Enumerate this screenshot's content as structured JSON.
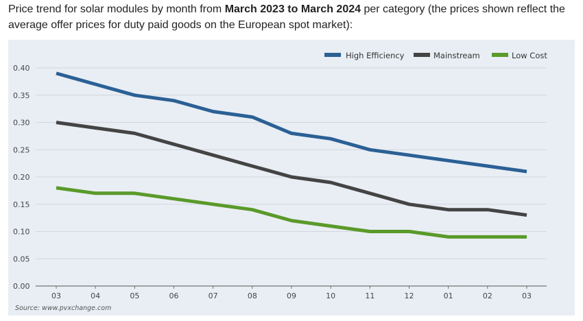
{
  "intro": {
    "part1": "Price trend for solar modules by month from ",
    "bold": "March 2023 to March 2024",
    "part2": " per category (the prices shown reflect the average offer prices for duty paid goods on the European spot market):"
  },
  "source": "Source: www.pvxchange.com",
  "colors": {
    "high_efficiency": "#2b6095",
    "mainstream": "#444444",
    "low_cost": "#5a9a2a",
    "grid": "#c9cfd6",
    "background": "#e9eef4"
  },
  "chart_data": {
    "type": "line",
    "title": "",
    "xlabel": "",
    "ylabel": "",
    "categories": [
      "03",
      "04",
      "05",
      "06",
      "07",
      "08",
      "09",
      "10",
      "11",
      "12",
      "01",
      "02",
      "03"
    ],
    "ylim": [
      0,
      0.4
    ],
    "yticks": [
      "0.00",
      "0.05",
      "0.10",
      "0.15",
      "0.20",
      "0.25",
      "0.30",
      "0.35",
      "0.40"
    ],
    "grid": true,
    "legend_position": "top-right",
    "series": [
      {
        "name": "High Efficiency",
        "color": "#2b6095",
        "values": [
          0.39,
          0.37,
          0.35,
          0.34,
          0.32,
          0.31,
          0.28,
          0.27,
          0.25,
          0.24,
          0.23,
          0.22,
          0.21
        ]
      },
      {
        "name": "Mainstream",
        "color": "#444444",
        "values": [
          0.3,
          0.29,
          0.28,
          0.26,
          0.24,
          0.22,
          0.2,
          0.19,
          0.17,
          0.15,
          0.14,
          0.14,
          0.13
        ]
      },
      {
        "name": "Low Cost",
        "color": "#5a9a2a",
        "values": [
          0.18,
          0.17,
          0.17,
          0.16,
          0.15,
          0.14,
          0.12,
          0.11,
          0.1,
          0.1,
          0.09,
          0.09,
          0.09
        ]
      }
    ]
  }
}
